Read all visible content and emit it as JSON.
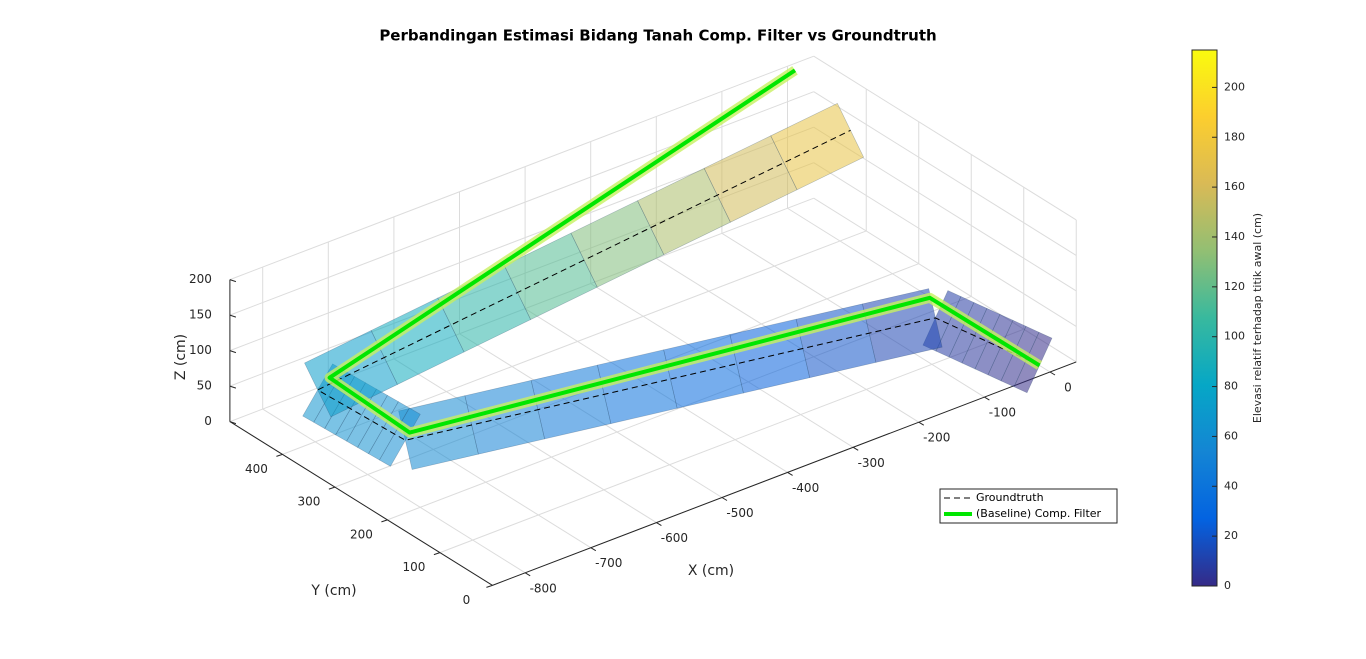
{
  "chart_data": {
    "type": "line3d",
    "title": "Perbandingan Estimasi Bidang Tanah Comp. Filter vs Groundtruth",
    "xlabel": "X (cm)",
    "ylabel": "Y (cm)",
    "zlabel": "Z (cm)",
    "xlim": [
      -850,
      40
    ],
    "ylim": [
      0,
      500
    ],
    "zlim": [
      0,
      200
    ],
    "xticks": [
      -800,
      -700,
      -600,
      -500,
      -400,
      -300,
      -200,
      -100,
      0
    ],
    "yticks": [
      0,
      100,
      200,
      300,
      400
    ],
    "zticks": [
      0,
      50,
      100,
      150,
      200
    ],
    "grid": true,
    "series": [
      {
        "name": "Groundtruth",
        "color": "#000000",
        "style": "dashed",
        "x": [
          0,
          -37,
          -777,
          -789,
          -16
        ],
        "y": [
          20,
          172,
          257,
          409,
          360
        ],
        "z": [
          0,
          10,
          60,
          65,
          180
        ]
      },
      {
        "name": "(Baseline) Comp. Filter",
        "color": "#00e600",
        "style": "solid",
        "x": [
          0,
          -12,
          -772,
          -770,
          1
        ],
        "y": [
          20,
          214,
          255,
          410,
          487
        ],
        "z": [
          0,
          10,
          70,
          75,
          200
        ]
      }
    ],
    "legend": "lower-right",
    "colorbar": {
      "label": "Elevasi relatif terhadap titik awal (cm)",
      "lim": [
        0,
        215
      ],
      "ticks": [
        0,
        20,
        40,
        60,
        80,
        100,
        120,
        140,
        160,
        180,
        200
      ],
      "colormap": [
        "#352a87",
        "#0363e1",
        "#1485d4",
        "#06a7c6",
        "#38b99e",
        "#92bf73",
        "#d9ba56",
        "#fcce2e",
        "#f9fb0e"
      ]
    }
  }
}
